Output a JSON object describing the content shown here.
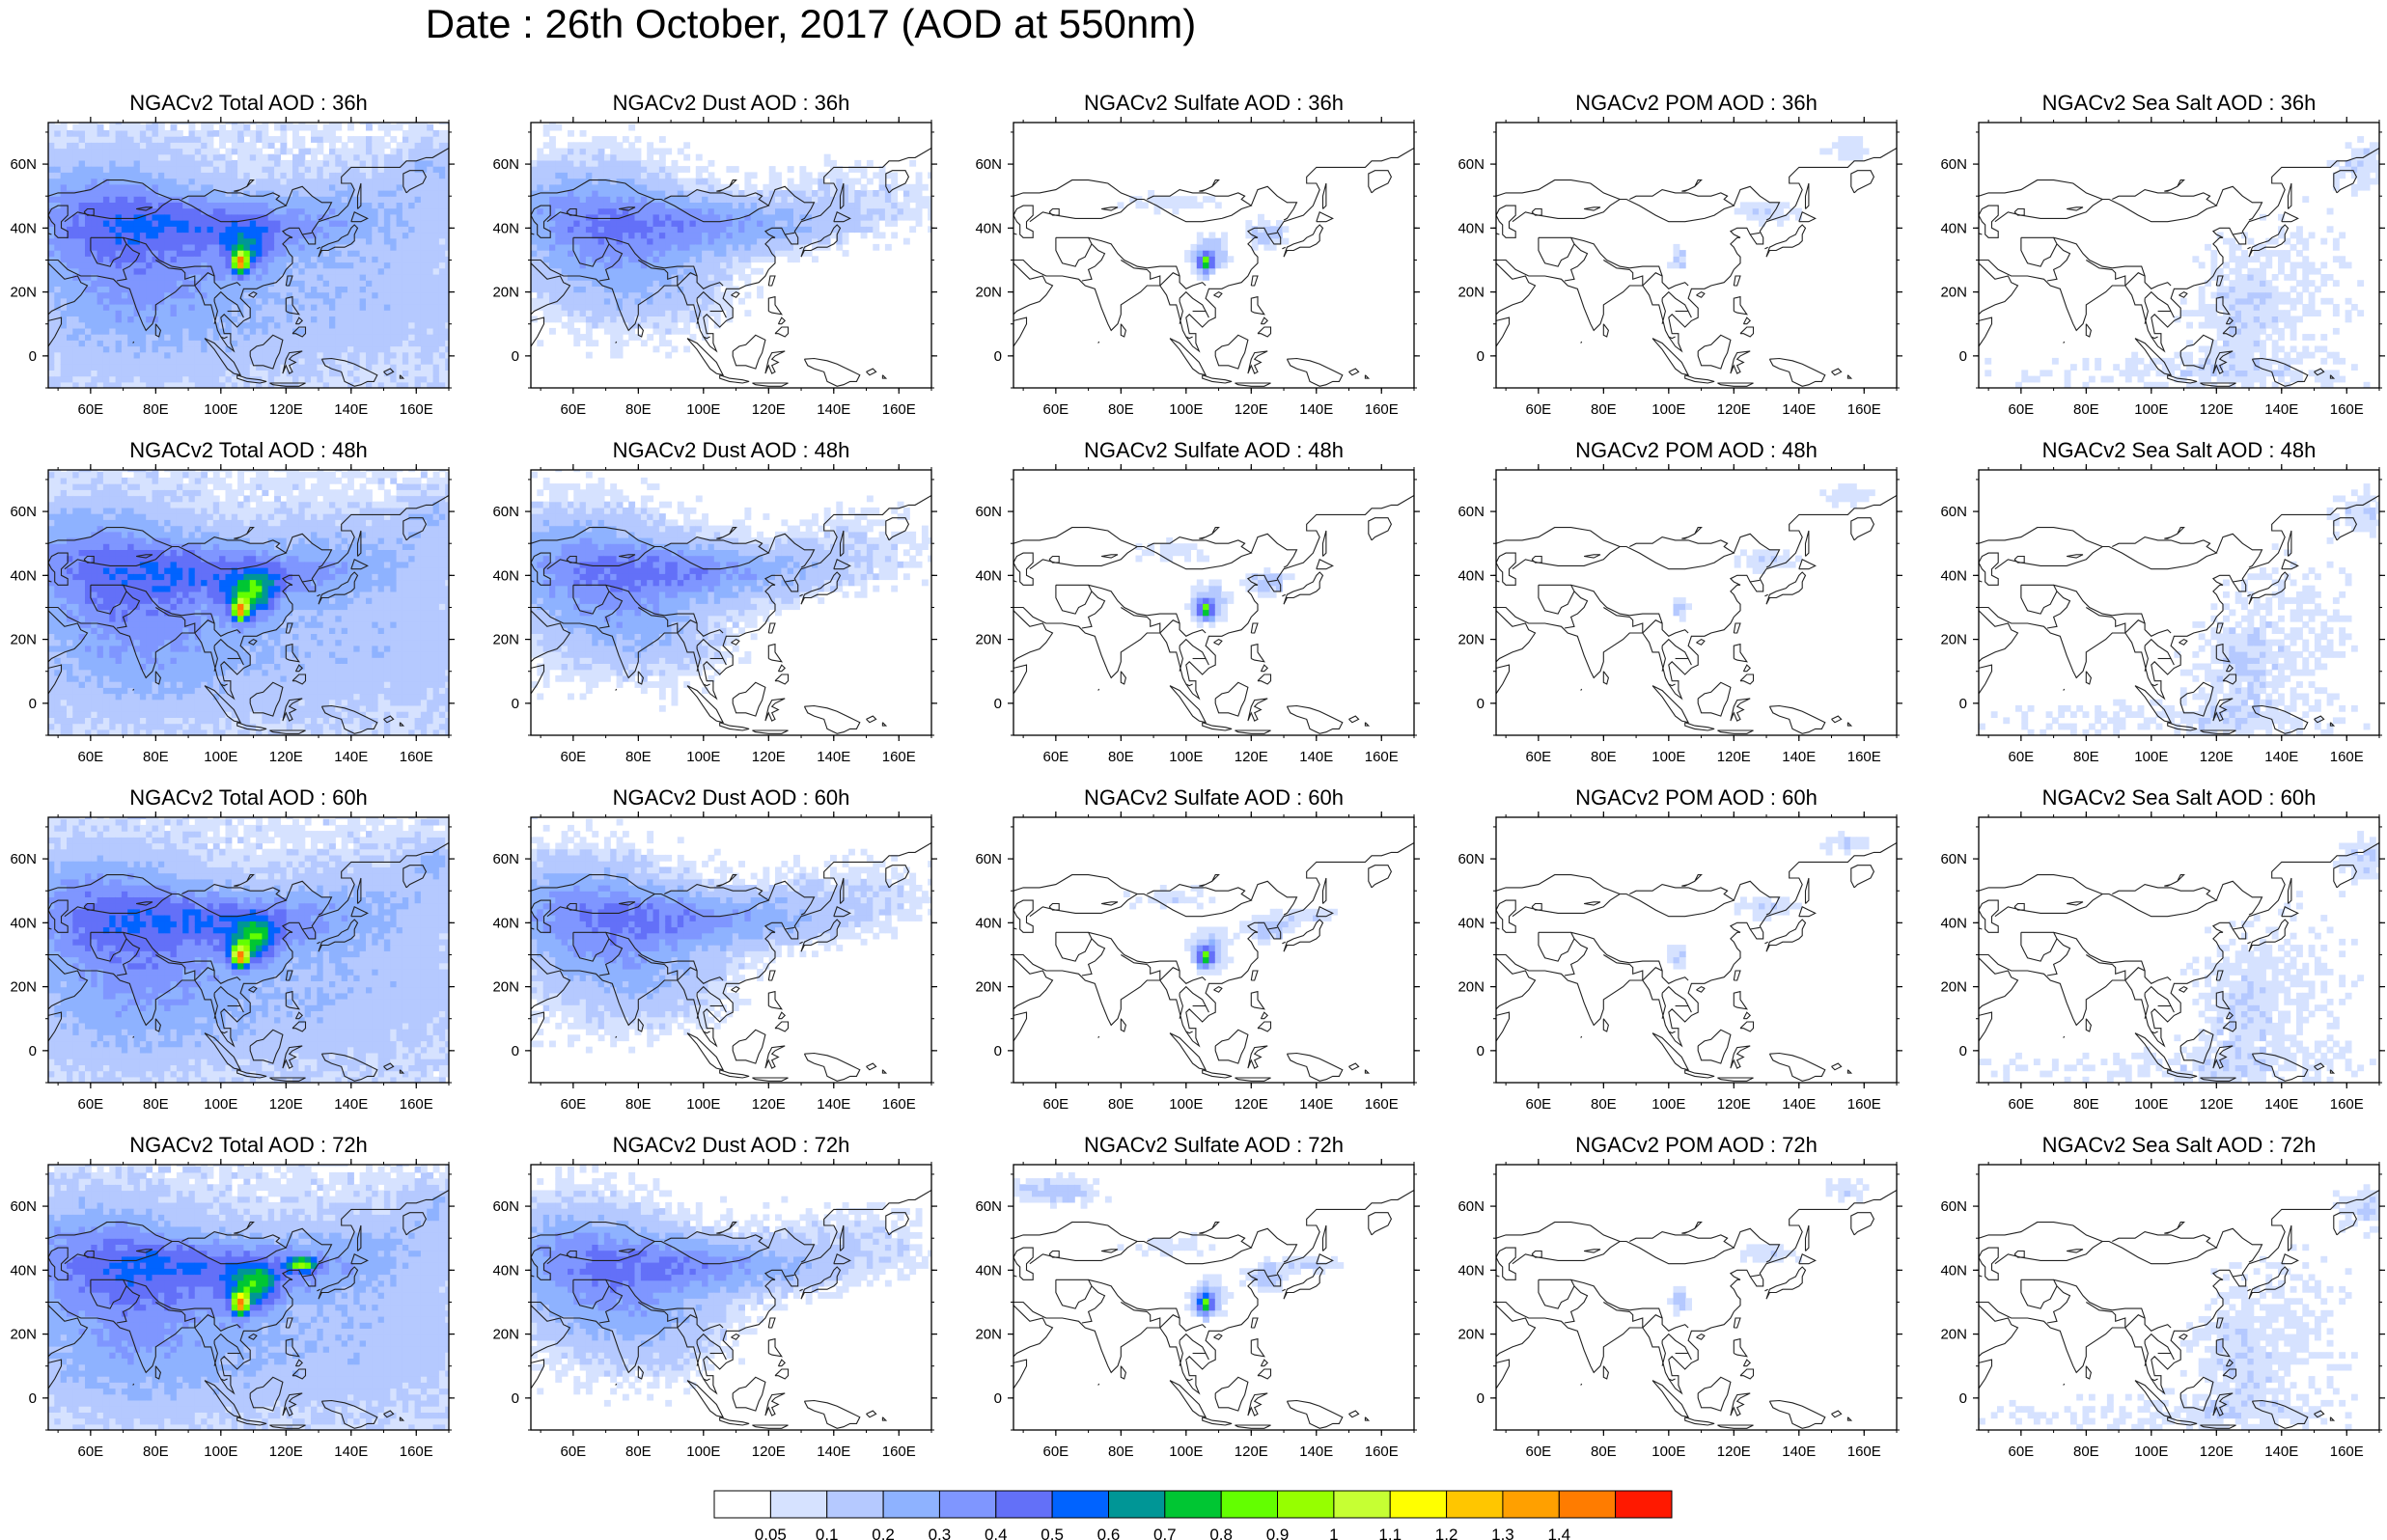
{
  "title": "Date : 26th October, 2017 (AOD at 550nm)",
  "lon_ticks": [
    "60E",
    "80E",
    "100E",
    "120E",
    "140E",
    "160E"
  ],
  "lat_ticks": [
    "60N",
    "40N",
    "20N",
    "0"
  ],
  "rows": [
    {
      "hour": "36h",
      "panels": [
        {
          "title": "NGACv2 Total AOD : 36h",
          "species": "total"
        },
        {
          "title": "NGACv2 Dust AOD : 36h",
          "species": "dust"
        },
        {
          "title": "NGACv2 Sulfate AOD : 36h",
          "species": "sulfate"
        },
        {
          "title": "NGACv2 POM AOD : 36h",
          "species": "pom"
        },
        {
          "title": "NGACv2 Sea Salt AOD : 36h",
          "species": "seasalt"
        }
      ]
    },
    {
      "hour": "48h",
      "panels": [
        {
          "title": "NGACv2 Total AOD : 48h",
          "species": "total"
        },
        {
          "title": "NGACv2 Dust AOD : 48h",
          "species": "dust"
        },
        {
          "title": "NGACv2 Sulfate AOD : 48h",
          "species": "sulfate"
        },
        {
          "title": "NGACv2 POM AOD : 48h",
          "species": "pom"
        },
        {
          "title": "NGACv2 Sea Salt AOD : 48h",
          "species": "seasalt"
        }
      ]
    },
    {
      "hour": "60h",
      "panels": [
        {
          "title": "NGACv2 Total AOD : 60h",
          "species": "total"
        },
        {
          "title": "NGACv2 Dust AOD : 60h",
          "species": "dust"
        },
        {
          "title": "NGACv2 Sulfate AOD : 60h",
          "species": "sulfate"
        },
        {
          "title": "NGACv2 POM AOD : 60h",
          "species": "pom"
        },
        {
          "title": "NGACv2 Sea Salt AOD : 60h",
          "species": "seasalt"
        }
      ]
    },
    {
      "hour": "72h",
      "panels": [
        {
          "title": "NGACv2 Total AOD : 72h",
          "species": "total"
        },
        {
          "title": "NGACv2 Dust AOD : 72h",
          "species": "dust"
        },
        {
          "title": "NGACv2 Sulfate AOD : 72h",
          "species": "sulfate"
        },
        {
          "title": "NGACv2 POM AOD : 72h",
          "species": "pom"
        },
        {
          "title": "NGACv2 Sea Salt  AOD : 72h",
          "species": "seasalt"
        }
      ]
    }
  ],
  "colorbar": {
    "labels": [
      "0.05",
      "0.1",
      "0.2",
      "0.3",
      "0.4",
      "0.5",
      "0.6",
      "0.7",
      "0.8",
      "0.9",
      "1",
      "1.1",
      "1.2",
      "1.3",
      "1.4"
    ],
    "colors": [
      "#ffffff",
      "#d6e2ff",
      "#b5c9ff",
      "#8eb2ff",
      "#7f96ff",
      "#6370f8",
      "#0063ff",
      "#009696",
      "#00c633",
      "#63ff00",
      "#96ff00",
      "#c6ff33",
      "#ffff00",
      "#ffc600",
      "#ffa000",
      "#ff7c00",
      "#ff1900"
    ]
  },
  "colors": {
    "coastline": "#222222",
    "frame": "#000000"
  }
}
